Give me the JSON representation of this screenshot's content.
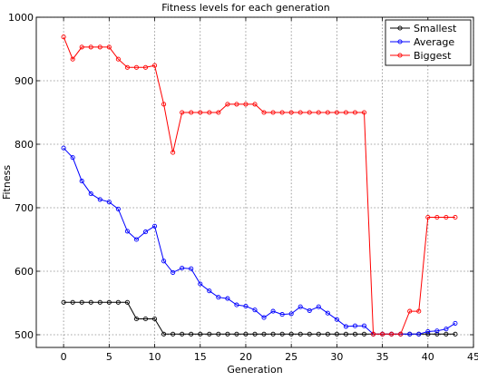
{
  "chart_data": {
    "type": "line",
    "title": "Fitness levels for each generation",
    "xlabel": "Generation",
    "ylabel": "Fitness",
    "xlim": [
      -3,
      45
    ],
    "ylim": [
      480,
      1000
    ],
    "xticks": [
      0,
      5,
      10,
      15,
      20,
      25,
      30,
      35,
      40,
      45
    ],
    "yticks": [
      500,
      600,
      700,
      800,
      900,
      1000
    ],
    "grid": true,
    "legend_position": "top-right",
    "x": [
      0,
      1,
      2,
      3,
      4,
      5,
      6,
      7,
      8,
      9,
      10,
      11,
      12,
      13,
      14,
      15,
      16,
      17,
      18,
      19,
      20,
      21,
      22,
      23,
      24,
      25,
      26,
      27,
      28,
      29,
      30,
      31,
      32,
      33,
      34,
      35,
      36,
      37,
      38,
      39,
      40,
      41,
      42,
      43
    ],
    "series": [
      {
        "name": "Smallest",
        "color": "#000000",
        "values": [
          551,
          551,
          551,
          551,
          551,
          551,
          551,
          551,
          525,
          525,
          525,
          501,
          501,
          501,
          501,
          501,
          501,
          501,
          501,
          501,
          501,
          501,
          501,
          501,
          501,
          501,
          501,
          501,
          501,
          501,
          501,
          501,
          501,
          501,
          501,
          501,
          501,
          501,
          501,
          501,
          501,
          501,
          501,
          501
        ]
      },
      {
        "name": "Average",
        "color": "#0000ff",
        "values": [
          794,
          779,
          742,
          722,
          713,
          709,
          698,
          663,
          650,
          662,
          671,
          616,
          598,
          605,
          604,
          580,
          569,
          559,
          557,
          547,
          545,
          539,
          527,
          537,
          532,
          533,
          544,
          538,
          544,
          534,
          524,
          513,
          514,
          514,
          501,
          501,
          501,
          501,
          501,
          501,
          505,
          506,
          509,
          518
        ]
      },
      {
        "name": "Biggest",
        "color": "#ff0000",
        "values": [
          969,
          934,
          953,
          953,
          953,
          953,
          934,
          921,
          921,
          921,
          924,
          863,
          787,
          850,
          850,
          850,
          850,
          850,
          863,
          863,
          863,
          863,
          850,
          850,
          850,
          850,
          850,
          850,
          850,
          850,
          850,
          850,
          850,
          850,
          501,
          501,
          501,
          501,
          537,
          537,
          685,
          685,
          685,
          685
        ]
      }
    ]
  }
}
